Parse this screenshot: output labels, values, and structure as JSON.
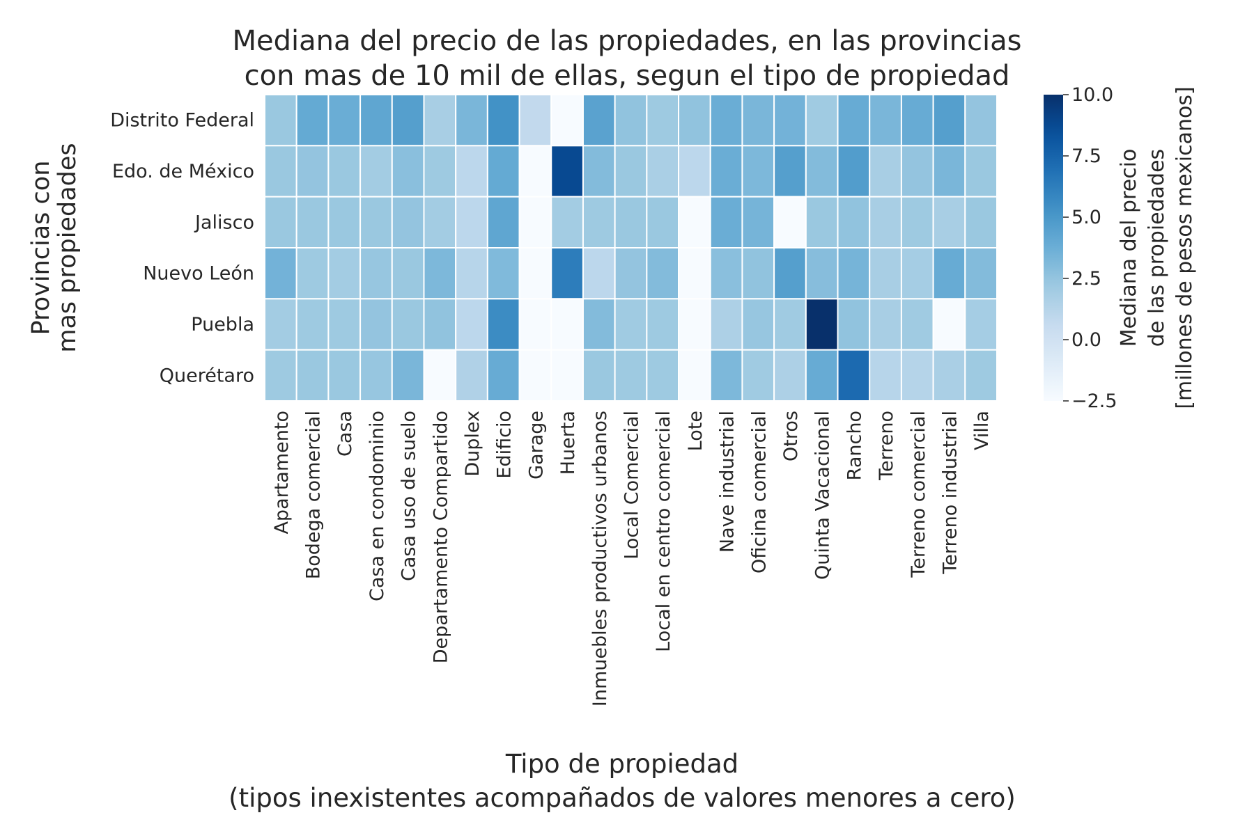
{
  "chart_data": {
    "type": "heatmap",
    "title": [
      "Mediana del precio de las propiedades, en las provincias",
      "con mas de 10 mil de ellas, segun el tipo de propiedad"
    ],
    "xlabel": [
      "Tipo de propiedad",
      "(tipos inexistentes acompañados de valores menores a cero)"
    ],
    "ylabel": [
      "Provincias con",
      "mas propiedades"
    ],
    "x_categories": [
      "Apartamento",
      "Bodega comercial",
      "Casa",
      "Casa en condominio",
      "Casa uso de suelo",
      "Departamento Compartido",
      "Duplex",
      "Edificio",
      "Garage",
      "Huerta",
      "Inmuebles productivos urbanos",
      "Local Comercial",
      "Local en centro comercial",
      "Lote",
      "Nave industrial",
      "Oficina comercial",
      "Otros",
      "Quinta Vacacional",
      "Rancho",
      "Terreno",
      "Terreno comercial",
      "Terreno industrial",
      "Villa"
    ],
    "y_categories": [
      "Distrito Federal",
      "Edo. de México",
      "Jalisco",
      "Nuevo León",
      "Puebla",
      "Querétaro"
    ],
    "values": [
      [
        2.3,
        4.0,
        3.8,
        4.2,
        4.6,
        1.8,
        3.3,
        5.3,
        0.8,
        -2.5,
        4.4,
        2.6,
        2.2,
        2.6,
        3.8,
        3.3,
        3.5,
        2.1,
        3.9,
        3.3,
        3.9,
        4.6,
        2.5
      ],
      [
        2.3,
        2.5,
        2.3,
        2.0,
        2.8,
        2.2,
        1.0,
        4.0,
        -2.5,
        8.8,
        3.0,
        2.3,
        1.7,
        1.0,
        3.8,
        3.2,
        4.6,
        3.0,
        4.7,
        1.8,
        2.5,
        3.3,
        2.3
      ],
      [
        2.3,
        2.3,
        2.3,
        2.3,
        2.5,
        2.0,
        1.0,
        4.2,
        -2.5,
        2.0,
        2.2,
        2.3,
        2.3,
        -2.5,
        3.8,
        3.4,
        -2.5,
        2.3,
        2.6,
        1.8,
        2.2,
        1.8,
        2.3
      ],
      [
        3.5,
        2.2,
        2.0,
        2.4,
        2.3,
        3.2,
        1.2,
        3.1,
        -2.5,
        6.3,
        1.0,
        2.5,
        3.0,
        -2.5,
        2.8,
        2.6,
        4.6,
        2.9,
        3.4,
        1.8,
        1.9,
        3.9,
        3.0
      ],
      [
        2.0,
        2.2,
        2.2,
        2.5,
        2.3,
        2.6,
        1.0,
        5.6,
        -2.5,
        -2.5,
        3.0,
        2.1,
        2.2,
        -2.5,
        1.6,
        2.4,
        2.1,
        10.0,
        2.6,
        1.8,
        2.1,
        -2.5,
        1.9
      ],
      [
        2.2,
        2.3,
        2.3,
        2.4,
        3.3,
        -2.5,
        1.5,
        3.9,
        -2.5,
        -2.5,
        2.3,
        2.2,
        2.2,
        -2.5,
        3.2,
        2.1,
        1.6,
        3.9,
        7.2,
        1.2,
        1.3,
        1.7,
        2.2
      ]
    ],
    "colormap": "Blues",
    "vmin": -2.5,
    "vmax": 10.0,
    "colorbar_ticks": [
      -2.5,
      0.0,
      2.5,
      5.0,
      7.5,
      10.0
    ],
    "colorbar_label": [
      "Mediana del precio",
      "de las propiedades",
      "[millones de pesos mexicanos]"
    ],
    "grid": false,
    "cell_border_color": "#ffffff"
  }
}
